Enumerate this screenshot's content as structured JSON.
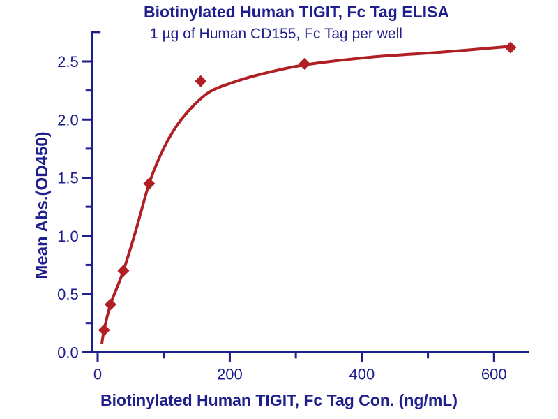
{
  "chart_data": {
    "type": "scatter",
    "title": "Biotinylated Human TIGIT, Fc Tag ELISA",
    "subtitle": "1 µg of Human CD155, Fc Tag per well",
    "xlabel": "Biotinylated Human TIGIT, Fc Tag Con. (ng/mL)",
    "ylabel": "Mean Abs.(OD450)",
    "xlim": [
      -9,
      652
    ],
    "ylim": [
      0,
      2.76
    ],
    "grid": false,
    "legend": "none",
    "marker": "diamond",
    "colors": {
      "series": "#b01f24",
      "axis": "#1e1e8c",
      "text": "#1e1e8c",
      "background": "#ffffff"
    },
    "x_major_ticks": [
      {
        "value": 0,
        "label": "0"
      },
      {
        "value": 200,
        "label": "200"
      },
      {
        "value": 400,
        "label": "400"
      },
      {
        "value": 600,
        "label": "600"
      }
    ],
    "x_minor_ticks": [
      100,
      300,
      500
    ],
    "y_major_ticks": [
      {
        "value": 0.0,
        "label": "0.0"
      },
      {
        "value": 0.5,
        "label": "0.5"
      },
      {
        "value": 1.0,
        "label": "1.0"
      },
      {
        "value": 1.5,
        "label": "1.5"
      },
      {
        "value": 2.0,
        "label": "2.0"
      },
      {
        "value": 2.5,
        "label": "2.5"
      }
    ],
    "y_minor_ticks": [
      0.25,
      0.75,
      1.25,
      1.75,
      2.25
    ],
    "points": [
      [
        9.8,
        0.19
      ],
      [
        19.5,
        0.41
      ],
      [
        39,
        0.7
      ],
      [
        78,
        1.45
      ],
      [
        156,
        2.33
      ],
      [
        313,
        2.48
      ],
      [
        625,
        2.62
      ]
    ],
    "fit_curve_points": [
      [
        6.5,
        0.08
      ],
      [
        9.8,
        0.19
      ],
      [
        19.5,
        0.41
      ],
      [
        39,
        0.7
      ],
      [
        58,
        1.05
      ],
      [
        78,
        1.45
      ],
      [
        98,
        1.73
      ],
      [
        120,
        1.95
      ],
      [
        145,
        2.12
      ],
      [
        170,
        2.24
      ],
      [
        200,
        2.31
      ],
      [
        240,
        2.38
      ],
      [
        313,
        2.47
      ],
      [
        420,
        2.54
      ],
      [
        520,
        2.58
      ],
      [
        625,
        2.63
      ]
    ]
  }
}
